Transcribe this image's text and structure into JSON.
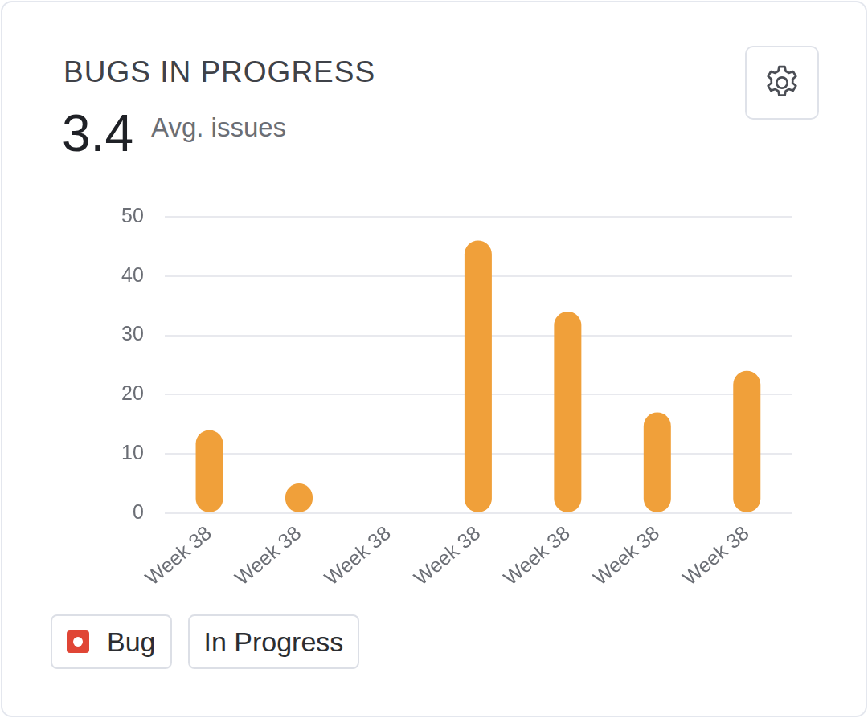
{
  "chart_data": {
    "type": "bar",
    "title": "BUGS IN PROGRESS",
    "annotations": [
      {
        "value": 3.4,
        "text": "Avg. issues"
      }
    ],
    "categories": [
      "Week 38",
      "Week 38",
      "Week 38",
      "Week 38",
      "Week 38",
      "Week 38",
      "Week 38"
    ],
    "values": [
      14,
      5,
      0,
      46,
      34,
      17,
      24
    ],
    "color": "#f0a03a",
    "ylim": [
      0,
      50
    ],
    "yticks": [
      0,
      10,
      20,
      30,
      40,
      50
    ],
    "grid": true,
    "filters": [
      {
        "label": "Bug",
        "color": "#e04535"
      },
      {
        "label": "In Progress"
      }
    ]
  }
}
